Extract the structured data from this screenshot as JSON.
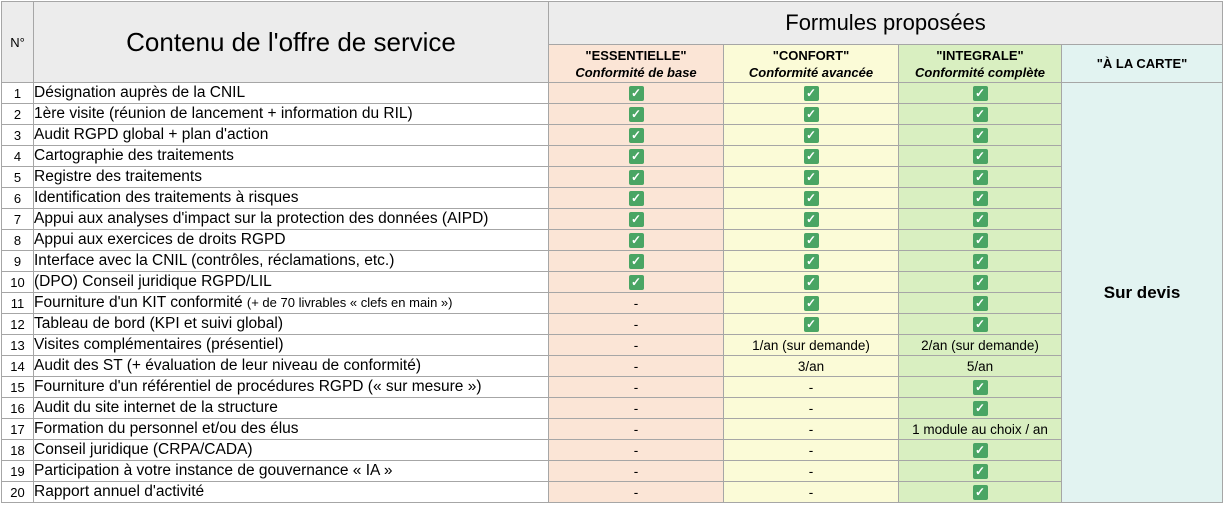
{
  "header": {
    "num": "N°",
    "content": "Contenu de l'offre de service",
    "formules": "Formules proposées"
  },
  "plans": [
    {
      "name": "\"ESSENTIELLE\"",
      "subtitle": "Conformité de base",
      "color": "#fbe5d6"
    },
    {
      "name": "\"CONFORT\"",
      "subtitle": "Conformité avancée",
      "color": "#fbfbd7"
    },
    {
      "name": "\"INTEGRALE\"",
      "subtitle": "Conformité complète",
      "color": "#d9efc1"
    },
    {
      "name": "\"À LA CARTE\"",
      "color": "#e2f3f1"
    }
  ],
  "carte_value": "Sur devis",
  "check_icon": "check-icon",
  "check_color": "#4aa564",
  "rows": [
    {
      "num": "1",
      "label": "Désignation auprès de la CNIL",
      "ess": "check",
      "conf": "check",
      "int": "check"
    },
    {
      "num": "2",
      "label": "1ère visite (réunion de lancement + information du RIL)",
      "ess": "check",
      "conf": "check",
      "int": "check"
    },
    {
      "num": "3",
      "label": "Audit RGPD global + plan d'action",
      "ess": "check",
      "conf": "check",
      "int": "check"
    },
    {
      "num": "4",
      "label": "Cartographie des traitements",
      "ess": "check",
      "conf": "check",
      "int": "check"
    },
    {
      "num": "5",
      "label": "Registre des traitements",
      "ess": "check",
      "conf": "check",
      "int": "check"
    },
    {
      "num": "6",
      "label": "Identification des traitements à risques",
      "ess": "check",
      "conf": "check",
      "int": "check"
    },
    {
      "num": "7",
      "label": "Appui aux analyses d'impact sur la protection des données (AIPD)",
      "ess": "check",
      "conf": "check",
      "int": "check"
    },
    {
      "num": "8",
      "label": "Appui aux exercices de droits RGPD",
      "ess": "check",
      "conf": "check",
      "int": "check"
    },
    {
      "num": "9",
      "label": "Interface avec la CNIL (contrôles, réclamations, etc.)",
      "ess": "check",
      "conf": "check",
      "int": "check"
    },
    {
      "num": "10",
      "label": "(DPO) Conseil juridique RGPD/LIL",
      "ess": "check",
      "conf": "check",
      "int": "check"
    },
    {
      "num": "11",
      "label": "Fourniture d'un KIT conformité ",
      "label_small": "(+ de 70 livrables « clefs en main »)",
      "ess": "-",
      "conf": "check",
      "int": "check"
    },
    {
      "num": "12",
      "label": "Tableau de bord (KPI et suivi global)",
      "ess": "-",
      "conf": "check",
      "int": "check"
    },
    {
      "num": "13",
      "label": "Visites complémentaires (présentiel)",
      "ess": "-",
      "conf": "1/an (sur demande)",
      "int": "2/an (sur demande)"
    },
    {
      "num": "14",
      "label": "Audit des ST (+ évaluation de leur niveau de conformité)",
      "ess": "-",
      "conf": "3/an",
      "int": "5/an"
    },
    {
      "num": "15",
      "label": "Fourniture d'un référentiel de procédures RGPD (« sur mesure »)",
      "ess": "-",
      "conf": "-",
      "int": "check"
    },
    {
      "num": "16",
      "label": "Audit du site internet de la structure",
      "ess": "-",
      "conf": "-",
      "int": "check"
    },
    {
      "num": "17",
      "label": "Formation du personnel et/ou des élus",
      "ess": "-",
      "conf": "-",
      "int": "1 module au choix / an"
    },
    {
      "num": "18",
      "label": "Conseil juridique (CRPA/CADA)",
      "ess": "-",
      "conf": "-",
      "int": "check"
    },
    {
      "num": "19",
      "label": "Participation à votre instance de gouvernance « IA »",
      "ess": "-",
      "conf": "-",
      "int": "check"
    },
    {
      "num": "20",
      "label": "Rapport annuel d'activité",
      "ess": "-",
      "conf": "-",
      "int": "check"
    }
  ]
}
